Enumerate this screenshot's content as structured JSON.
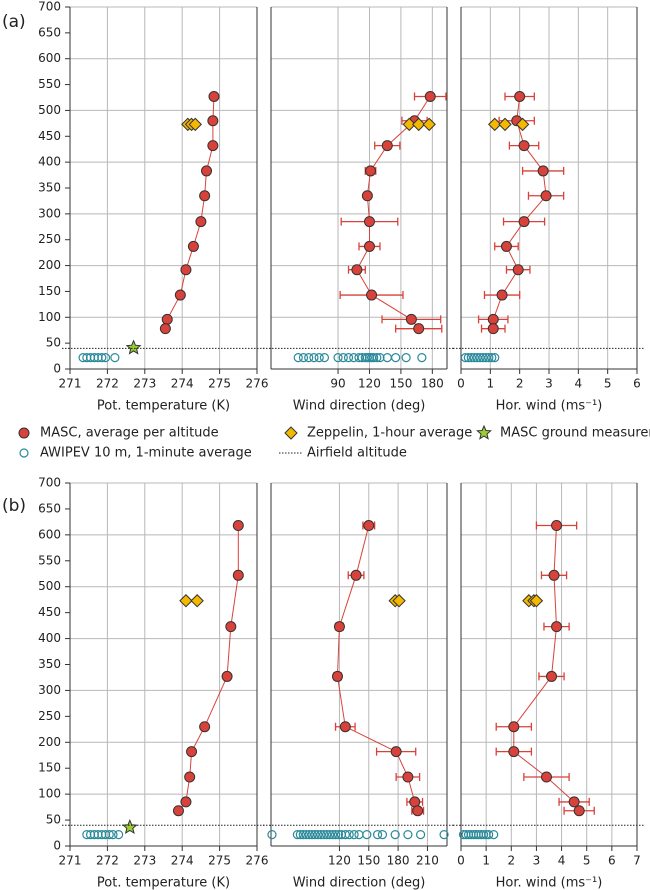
{
  "panel_labels": [
    "(a)",
    "(b)"
  ],
  "chart_data": [
    {
      "type": "profile",
      "xlabel": "Pot. temperature (K)",
      "xlim": [
        271,
        276
      ],
      "xticks": [
        271,
        272,
        273,
        274,
        275,
        276
      ],
      "ylim": [
        0,
        700
      ],
      "yticks": [
        0,
        50,
        100,
        150,
        200,
        250,
        300,
        350,
        400,
        450,
        500,
        550,
        600,
        650,
        700
      ],
      "grid": true,
      "series": [
        {
          "name": "MASC, average per altitude",
          "type": "line-scatter",
          "color": "#d9423a",
          "x": [
            274.85,
            274.82,
            274.82,
            274.65,
            274.6,
            274.5,
            274.3,
            274.1,
            273.95,
            273.6,
            273.55
          ],
          "y": [
            527,
            480,
            432,
            383,
            335,
            285,
            237,
            192,
            143,
            96,
            78
          ]
        },
        {
          "name": "Zeppelin, 1-hour average",
          "type": "diamond",
          "color": "#f5b800",
          "x": [
            274.15,
            274.25,
            274.35
          ],
          "y": [
            473,
            473,
            473
          ]
        },
        {
          "name": "MASC ground measurement",
          "type": "star",
          "color": "#9acd32",
          "x": [
            272.7
          ],
          "y": [
            41
          ]
        },
        {
          "name": "AWIPEV 10 m, 1-minute average",
          "type": "open-circle",
          "color": "#2a8a9a",
          "x": [
            271.35,
            271.45,
            271.55,
            271.65,
            271.75,
            271.85,
            271.95,
            272.2
          ],
          "y": [
            22,
            22,
            22,
            22,
            22,
            22,
            22,
            22
          ]
        },
        {
          "name": "Airfield altitude",
          "type": "hline",
          "color": "#222",
          "values": [
            40
          ]
        }
      ]
    },
    {
      "type": "profile",
      "xlabel": "Wind direction (deg)",
      "xlim": [
        26,
        194
      ],
      "xticks": [
        90,
        120,
        150,
        180
      ],
      "ylim": [
        0,
        700
      ],
      "yticks": [
        0,
        50,
        100,
        150,
        200,
        250,
        300,
        350,
        400,
        450,
        500,
        550,
        600,
        650,
        700
      ],
      "grid": true,
      "series": [
        {
          "name": "MASC, average per altitude",
          "type": "line-scatter",
          "color": "#d9423a",
          "x": [
            178,
            163,
            137,
            121,
            118,
            120,
            120,
            108,
            122,
            160,
            167
          ],
          "xerr": [
            15,
            12,
            12,
            5,
            3,
            27,
            10,
            8,
            30,
            28,
            22
          ],
          "y": [
            527,
            480,
            432,
            383,
            335,
            285,
            237,
            192,
            143,
            96,
            78
          ]
        },
        {
          "name": "Zeppelin, 1-hour average",
          "type": "diamond",
          "color": "#f5b800",
          "x": [
            158,
            167,
            177
          ],
          "y": [
            473,
            473,
            473
          ]
        },
        {
          "name": "AWIPEV 10 m, 1-minute average",
          "type": "open-circle",
          "color": "#2a8a9a",
          "x": [
            52,
            57,
            62,
            67,
            72,
            77,
            90,
            95,
            100,
            105,
            110,
            113,
            116,
            118,
            120,
            122,
            124,
            127,
            130,
            137,
            145,
            155,
            170
          ],
          "y": [
            22,
            22,
            22,
            22,
            22,
            22,
            22,
            22,
            22,
            22,
            22,
            22,
            22,
            22,
            22,
            22,
            22,
            22,
            22,
            22,
            22,
            22,
            22
          ]
        },
        {
          "name": "Airfield altitude",
          "type": "hline",
          "color": "#222",
          "values": [
            40
          ]
        }
      ]
    },
    {
      "type": "profile",
      "xlabel": "Hor. wind (ms⁻¹)",
      "xlim": [
        0,
        6
      ],
      "xticks": [
        0,
        1,
        2,
        3,
        4,
        5,
        6
      ],
      "ylim": [
        0,
        700
      ],
      "yticks": [
        0,
        50,
        100,
        150,
        200,
        250,
        300,
        350,
        400,
        450,
        500,
        550,
        600,
        650,
        700
      ],
      "grid": true,
      "series": [
        {
          "name": "MASC, average per altitude",
          "type": "line-scatter",
          "color": "#d9423a",
          "x": [
            2.0,
            1.9,
            2.15,
            2.8,
            2.9,
            2.15,
            1.55,
            1.95,
            1.4,
            1.1,
            1.1
          ],
          "xerr": [
            0.5,
            0.6,
            0.5,
            0.7,
            0.6,
            0.7,
            0.4,
            0.4,
            0.6,
            0.5,
            0.4
          ],
          "y": [
            527,
            480,
            432,
            383,
            335,
            285,
            237,
            192,
            143,
            96,
            78
          ]
        },
        {
          "name": "Zeppelin, 1-hour average",
          "type": "diamond",
          "color": "#f5b800",
          "x": [
            1.15,
            1.5,
            2.1
          ],
          "y": [
            473,
            473,
            473
          ]
        },
        {
          "name": "AWIPEV 10 m, 1-minute average",
          "type": "open-circle",
          "color": "#2a8a9a",
          "x": [
            0.15,
            0.25,
            0.35,
            0.45,
            0.55,
            0.65,
            0.75,
            0.85,
            0.95,
            1.05,
            1.15
          ],
          "y": [
            22,
            22,
            22,
            22,
            22,
            22,
            22,
            22,
            22,
            22,
            22
          ]
        },
        {
          "name": "Airfield altitude",
          "type": "hline",
          "color": "#222",
          "values": [
            40
          ]
        }
      ]
    },
    {
      "type": "profile",
      "xlabel": "Pot. temperature (K)",
      "xlim": [
        271,
        276
      ],
      "xticks": [
        271,
        272,
        273,
        274,
        275,
        276
      ],
      "ylim": [
        0,
        700
      ],
      "yticks": [
        0,
        50,
        100,
        150,
        200,
        250,
        300,
        350,
        400,
        450,
        500,
        550,
        600,
        650,
        700
      ],
      "grid": true,
      "series": [
        {
          "name": "MASC, average per altitude",
          "type": "line-scatter",
          "color": "#d9423a",
          "x": [
            275.5,
            275.5,
            275.3,
            275.2,
            274.6,
            274.25,
            274.2,
            274.1,
            273.9
          ],
          "y": [
            618,
            522,
            423,
            327,
            230,
            182,
            133,
            85,
            68
          ]
        },
        {
          "name": "Zeppelin, 1-hour average",
          "type": "diamond",
          "color": "#f5b800",
          "x": [
            274.1,
            274.4
          ],
          "y": [
            473,
            473
          ]
        },
        {
          "name": "MASC ground measurement",
          "type": "star",
          "color": "#9acd32",
          "x": [
            272.6
          ],
          "y": [
            36
          ]
        },
        {
          "name": "AWIPEV 10 m, 1-minute average",
          "type": "open-circle",
          "color": "#2a8a9a",
          "x": [
            271.45,
            271.55,
            271.65,
            271.75,
            271.85,
            271.95,
            272.05,
            272.15,
            272.3
          ],
          "y": [
            22,
            22,
            22,
            22,
            22,
            22,
            22,
            22,
            22
          ]
        },
        {
          "name": "Airfield altitude",
          "type": "hline",
          "color": "#222",
          "values": [
            40
          ]
        }
      ]
    },
    {
      "type": "profile",
      "xlabel": "Wind direction (deg)",
      "xlim": [
        50,
        230
      ],
      "xticks": [
        120,
        150,
        180,
        210
      ],
      "ylim": [
        0,
        700
      ],
      "yticks": [
        0,
        50,
        100,
        150,
        200,
        250,
        300,
        350,
        400,
        450,
        500,
        550,
        600,
        650,
        700
      ],
      "grid": true,
      "series": [
        {
          "name": "MASC, average per altitude",
          "type": "line-scatter",
          "color": "#d9423a",
          "x": [
            150,
            137,
            120,
            118,
            126,
            178,
            190,
            197,
            200
          ],
          "xerr": [
            6,
            8,
            4,
            4,
            10,
            20,
            12,
            8,
            6
          ],
          "y": [
            618,
            522,
            423,
            327,
            230,
            182,
            133,
            85,
            68
          ]
        },
        {
          "name": "Zeppelin, 1-hour average",
          "type": "diamond",
          "color": "#f5b800",
          "x": [
            177,
            181
          ],
          "y": [
            473,
            473
          ]
        },
        {
          "name": "AWIPEV 10 m, 1-minute average",
          "type": "open-circle",
          "color": "#2a8a9a",
          "x": [
            51,
            77,
            80,
            83,
            86,
            89,
            92,
            95,
            98,
            101,
            104,
            107,
            110,
            113,
            116,
            119,
            122,
            126,
            130,
            135,
            140,
            148,
            159,
            164,
            177,
            190,
            203,
            227
          ],
          "y": [
            22,
            22,
            22,
            22,
            22,
            22,
            22,
            22,
            22,
            22,
            22,
            22,
            22,
            22,
            22,
            22,
            22,
            22,
            22,
            22,
            22,
            22,
            22,
            22,
            22,
            22,
            22,
            22
          ]
        },
        {
          "name": "Airfield altitude",
          "type": "hline",
          "color": "#222",
          "values": [
            40
          ]
        }
      ]
    },
    {
      "type": "profile",
      "xlabel": "Hor. wind (ms⁻¹)",
      "xlim": [
        0,
        7
      ],
      "xticks": [
        0,
        1,
        2,
        3,
        4,
        5,
        6,
        7
      ],
      "ylim": [
        0,
        700
      ],
      "yticks": [
        0,
        50,
        100,
        150,
        200,
        250,
        300,
        350,
        400,
        450,
        500,
        550,
        600,
        650,
        700
      ],
      "grid": true,
      "series": [
        {
          "name": "MASC, average per altitude",
          "type": "line-scatter",
          "color": "#d9423a",
          "x": [
            3.8,
            3.7,
            3.8,
            3.6,
            2.1,
            2.1,
            3.4,
            4.5,
            4.7
          ],
          "xerr": [
            0.8,
            0.5,
            0.5,
            0.5,
            0.7,
            0.7,
            0.9,
            0.6,
            0.6
          ],
          "y": [
            618,
            522,
            423,
            327,
            230,
            182,
            133,
            85,
            68
          ]
        },
        {
          "name": "Zeppelin, 1-hour average",
          "type": "diamond",
          "color": "#f5b800",
          "x": [
            2.7,
            2.9,
            3.0
          ],
          "y": [
            473,
            473,
            473
          ]
        },
        {
          "name": "AWIPEV 10 m, 1-minute average",
          "type": "open-circle",
          "color": "#2a8a9a",
          "x": [
            0.1,
            0.2,
            0.3,
            0.4,
            0.5,
            0.6,
            0.7,
            0.8,
            0.9,
            1.0,
            1.1,
            1.3
          ],
          "y": [
            22,
            22,
            22,
            22,
            22,
            22,
            22,
            22,
            22,
            22,
            22,
            22
          ]
        },
        {
          "name": "Airfield altitude",
          "type": "hline",
          "color": "#222",
          "values": [
            40
          ]
        }
      ]
    }
  ]
}
